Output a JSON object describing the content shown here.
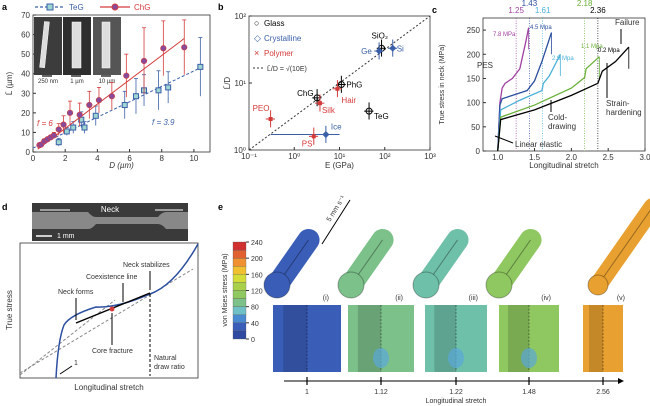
{
  "chart_data": [
    {
      "panel": "a",
      "type": "scatter",
      "panel_label": "a",
      "xlabel": "D (µm)",
      "ylabel": "L̄ (µm)",
      "xlim": [
        0,
        11
      ],
      "ylim": [
        0,
        70
      ],
      "xticks": [
        0,
        2,
        4,
        6,
        8,
        10
      ],
      "yticks": [
        0,
        10,
        20,
        30,
        40,
        50,
        60,
        70
      ],
      "insets": [
        "250 nm",
        "1 µm",
        "10 µm"
      ],
      "series": [
        {
          "name": "TeG",
          "color": "#3a5fa8",
          "marker": "square",
          "fit_label": "f = 3.9",
          "fit": [
            [
              0,
              2
            ],
            [
              10.4,
              43
            ]
          ],
          "x": [
            1.6,
            2.1,
            2.5,
            3.0,
            3.2,
            3.9,
            5.7,
            6.4,
            6.9,
            7.8,
            8.4,
            10.4
          ],
          "y": [
            5,
            10.5,
            12.5,
            16.5,
            12.5,
            18.5,
            24,
            28.5,
            31.5,
            31.5,
            33,
            43.5
          ],
          "err": [
            2,
            2,
            3,
            4,
            3,
            5,
            7,
            9,
            8,
            10,
            8,
            15
          ]
        },
        {
          "name": "ChG",
          "color": "#d43a3a",
          "marker": "circle",
          "fit_label": "f = 6",
          "fit": [
            [
              0.3,
              1.5
            ],
            [
              9.4,
              58
            ]
          ],
          "x": [
            0.4,
            0.5,
            0.7,
            0.9,
            1.1,
            1.3,
            1.6,
            1.9,
            2.3,
            2.9,
            3.5,
            4.1,
            4.9,
            5.8,
            6.9,
            8.1,
            9.4
          ],
          "y": [
            3.5,
            3.8,
            5.5,
            6.5,
            7.5,
            8.5,
            11.5,
            14,
            20,
            19,
            24,
            26.5,
            28.5,
            39,
            46.5,
            53,
            53.5
          ],
          "err": [
            0.5,
            0.5,
            1,
            1,
            1,
            1.5,
            3,
            4.5,
            6,
            6,
            7,
            6.5,
            7,
            11,
            17,
            14,
            14
          ]
        }
      ]
    },
    {
      "panel": "b",
      "type": "scatter",
      "panel_label": "b",
      "xlabel": "E (GPa)",
      "ylabel": "L̄/D",
      "xscale": "log",
      "yscale": "log",
      "xlim": [
        0.1,
        1000
      ],
      "ylim": [
        1,
        100
      ],
      "xticks": [
        "10⁻¹",
        "10⁰",
        "10¹",
        "10²",
        "10³"
      ],
      "yticks": [
        "10⁰",
        "10¹",
        "10²"
      ],
      "legend": [
        "Glass",
        "Crystalline",
        "Polymer"
      ],
      "fit_label": "L̄/D = √(10E)",
      "legend_placement": "top-left",
      "points": [
        {
          "label": "SiO₂",
          "class": "Glass",
          "E": 85,
          "LD": 33,
          "color": "#000"
        },
        {
          "label": "PhG",
          "class": "Glass",
          "E": 11,
          "LD": 9.5,
          "color": "#000"
        },
        {
          "label": "ChG",
          "class": "Glass",
          "E": 3.2,
          "LD": 6,
          "color": "#000"
        },
        {
          "label": "TeG",
          "class": "Glass",
          "E": 45,
          "LD": 3.8,
          "color": "#000"
        },
        {
          "label": "Ge",
          "class": "Crystalline",
          "E": 75,
          "LD": 30,
          "color": "#3a5fa8"
        },
        {
          "label": "Si",
          "class": "Crystalline",
          "E": 150,
          "LD": 33,
          "color": "#3a5fa8"
        },
        {
          "label": "Ice",
          "class": "Crystalline",
          "E": 5,
          "LD": 1.7,
          "color": "#3a5fa8"
        },
        {
          "label": "PEO",
          "class": "Polymer",
          "E": 0.3,
          "LD": 2.9,
          "color": "#d43a3a"
        },
        {
          "label": "Silk",
          "class": "Polymer",
          "E": 3.7,
          "LD": 5,
          "color": "#d43a3a"
        },
        {
          "label": "Hair",
          "class": "Polymer",
          "E": 9,
          "LD": 8.2,
          "color": "#d43a3a"
        },
        {
          "label": "PS",
          "class": "Polymer",
          "E": 2.7,
          "LD": 1.6,
          "color": "#d43a3a"
        }
      ]
    },
    {
      "panel": "c",
      "type": "line",
      "panel_label": "c",
      "xlabel": "Longitudinal stretch",
      "ylabel": "True stress in neck (MPa)",
      "xlim": [
        0.8,
        3.0
      ],
      "ylim": [
        0,
        275
      ],
      "xticks": [
        "1.0",
        "1.5",
        "2.0",
        "2.5",
        "3.0"
      ],
      "yticks": [
        0,
        50,
        100,
        150,
        200,
        250
      ],
      "vlines": [
        {
          "x": 1.25,
          "label": "1.25",
          "color": "#a040a0"
        },
        {
          "x": 1.43,
          "label": "1.43",
          "color": "#2d4fa0"
        },
        {
          "x": 1.61,
          "label": "1.61",
          "color": "#4ab0d8"
        },
        {
          "x": 2.18,
          "label": "2.18",
          "color": "#6ab03a"
        },
        {
          "x": 2.36,
          "label": "2.36",
          "color": "#000"
        }
      ],
      "annotations": [
        "PES",
        "Linear elastic",
        "Cold-drawing",
        "Strain-hardening",
        "Failure"
      ],
      "series": [
        {
          "label": "7.8 MPa",
          "color": "#a040a0",
          "x": [
            1,
            1.03,
            1.06,
            1.1,
            1.2,
            1.3,
            1.38,
            1.42
          ],
          "y": [
            0,
            100,
            130,
            140,
            150,
            170,
            225,
            255
          ]
        },
        {
          "label": "4.5 Mpa",
          "color": "#2d4fa0",
          "x": [
            1,
            1.03,
            1.06,
            1.2,
            1.4,
            1.5,
            1.6,
            1.73
          ],
          "y": [
            0,
            95,
            108,
            115,
            125,
            145,
            185,
            245
          ]
        },
        {
          "label": "2.9 Mpa",
          "color": "#4ab0d8",
          "x": [
            1,
            1.04,
            1.3,
            1.6,
            1.62,
            1.7,
            1.85
          ],
          "y": [
            0,
            85,
            105,
            125,
            140,
            155,
            200
          ]
        },
        {
          "label": "1.1 Mpa",
          "color": "#6ab03a",
          "x": [
            1,
            1.04,
            1.5,
            2.0,
            2.18,
            2.2,
            2.38
          ],
          "y": [
            0,
            70,
            95,
            130,
            152,
            170,
            195
          ]
        },
        {
          "label": "0.2 Mpa",
          "color": "#000",
          "x": [
            1,
            1.04,
            1.5,
            2.0,
            2.36,
            2.42,
            2.6,
            2.78
          ],
          "y": [
            0,
            65,
            85,
            115,
            140,
            165,
            185,
            215
          ]
        }
      ]
    },
    {
      "panel": "d",
      "type": "line",
      "panel_label": "d",
      "xlabel": "Longitudinal stretch",
      "ylabel": "True stress",
      "image_label": "Neck",
      "scale_label": "1 mm",
      "annotations": [
        "Neck forms",
        "Coexistence line",
        "Neck stabilizes",
        "Core fracture",
        "Natural draw ratio",
        "1"
      ]
    },
    {
      "panel": "e",
      "type": "heatmap",
      "panel_label": "e",
      "colorbar_label": "von Mises stress (MPa)",
      "colorbar_ticks": [
        0,
        40,
        80,
        120,
        160,
        200,
        240
      ],
      "colorbar_colors": [
        "#2f4aa0",
        "#3a5db8",
        "#4a8ad0",
        "#70c0c8",
        "#7cc08a",
        "#8fc760",
        "#a8d04a",
        "#d4dc3a",
        "#f0c030",
        "#f09030",
        "#e06030",
        "#d03030"
      ],
      "rate_label": "5 mm s⁻¹",
      "xlabel": "Longitudinal stretch",
      "stages": [
        {
          "roman": "(i)",
          "stretch": "1",
          "color": "#3a5db8"
        },
        {
          "roman": "(ii)",
          "stretch": "1.12",
          "color": "#7cc08a"
        },
        {
          "roman": "(iii)",
          "stretch": "1.22",
          "color": "#6fc0a8"
        },
        {
          "roman": "(iv)",
          "stretch": "1.48",
          "color": "#8fc760"
        },
        {
          "roman": "(v)",
          "stretch": "2.56",
          "color": "#e8a030"
        }
      ]
    }
  ]
}
